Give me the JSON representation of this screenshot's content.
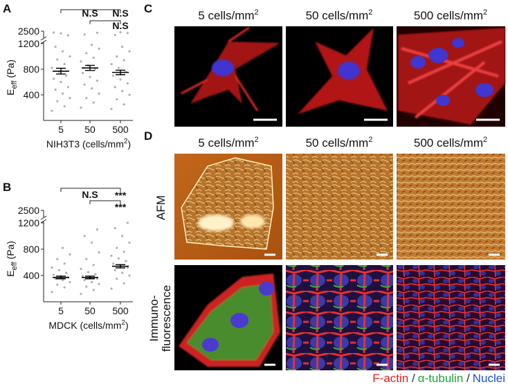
{
  "panel_labels": [
    "A",
    "B",
    "C",
    "D"
  ],
  "chart_data": [
    {
      "type": "dot",
      "categories": [
        "5",
        "50",
        "500"
      ],
      "ylabel": "E",
      "ylabel_sub": "eff",
      "ylabel_rest": " (Pa)",
      "xlabel": "NIH3T3 (cells/mm",
      "xlabel_sup": "2",
      "xlabel_end": ")",
      "ylim": [
        0,
        2500
      ],
      "y_break": [
        1200,
        2300
      ],
      "yticks": [
        400,
        800,
        1200,
        2500
      ],
      "color": "#b0b0b0",
      "points": [
        [
          150,
          220,
          300,
          350,
          420,
          480,
          520,
          600,
          650,
          700,
          760,
          820,
          880,
          950,
          1000,
          1080,
          1150,
          2350,
          2420,
          2450
        ],
        [
          200,
          280,
          350,
          420,
          500,
          560,
          620,
          680,
          740,
          800,
          860,
          920,
          980,
          1050,
          1120,
          1180,
          2380,
          2440
        ],
        [
          180,
          250,
          330,
          400,
          460,
          520,
          580,
          640,
          700,
          760,
          820,
          880,
          940,
          1000,
          1080,
          1150,
          2360,
          2430,
          2460
        ]
      ],
      "mean": [
        770,
        820,
        750
      ],
      "sem": [
        45,
        40,
        35
      ],
      "annotations": [
        "N.S",
        "N.S",
        "N.S"
      ]
    },
    {
      "type": "dot",
      "categories": [
        "5",
        "50",
        "500"
      ],
      "ylabel": "E",
      "ylabel_sub": "eff",
      "ylabel_rest": " (Pa)",
      "xlabel": "MDCK (cells/mm",
      "xlabel_sup": "2",
      "xlabel_end": ")",
      "ylim": [
        0,
        2500
      ],
      "y_break": [
        1200,
        2300
      ],
      "yticks": [
        400,
        800,
        1200,
        2500
      ],
      "color": "#b0b0b0",
      "points": [
        [
          150,
          220,
          260,
          300,
          330,
          350,
          370,
          390,
          410,
          440,
          480,
          520,
          580,
          650,
          720,
          820
        ],
        [
          120,
          180,
          230,
          270,
          300,
          330,
          350,
          370,
          390,
          420,
          450,
          500,
          560,
          650,
          750,
          900,
          1000,
          1100
        ],
        [
          200,
          280,
          350,
          400,
          440,
          480,
          520,
          550,
          580,
          620,
          660,
          700,
          760,
          820,
          900,
          1000,
          1120,
          1200
        ]
      ],
      "mean": [
        370,
        370,
        540
      ],
      "sem": [
        20,
        20,
        25
      ],
      "annotations": [
        "N.S",
        "***",
        "***"
      ]
    }
  ],
  "panel_c": {
    "columns": [
      {
        "text": "5 cells/mm",
        "sup": "2"
      },
      {
        "text": "50 cells/mm",
        "sup": "2"
      },
      {
        "text": "500 cells/mm",
        "sup": "2"
      }
    ]
  },
  "panel_d": {
    "columns": [
      {
        "text": "5 cells/mm",
        "sup": "2"
      },
      {
        "text": "50 cells/mm",
        "sup": "2"
      },
      {
        "text": "500 cells/mm",
        "sup": "2"
      }
    ],
    "row_labels": [
      "AFM",
      "Immuno-",
      "fluorescence"
    ]
  },
  "legend": {
    "items": [
      {
        "text": "F-actin",
        "color": "#e02020"
      },
      {
        "text": "α-tubulin",
        "color": "#22a03a"
      },
      {
        "text": "Nuclei",
        "color": "#2050d0"
      }
    ],
    "separator": "/"
  }
}
